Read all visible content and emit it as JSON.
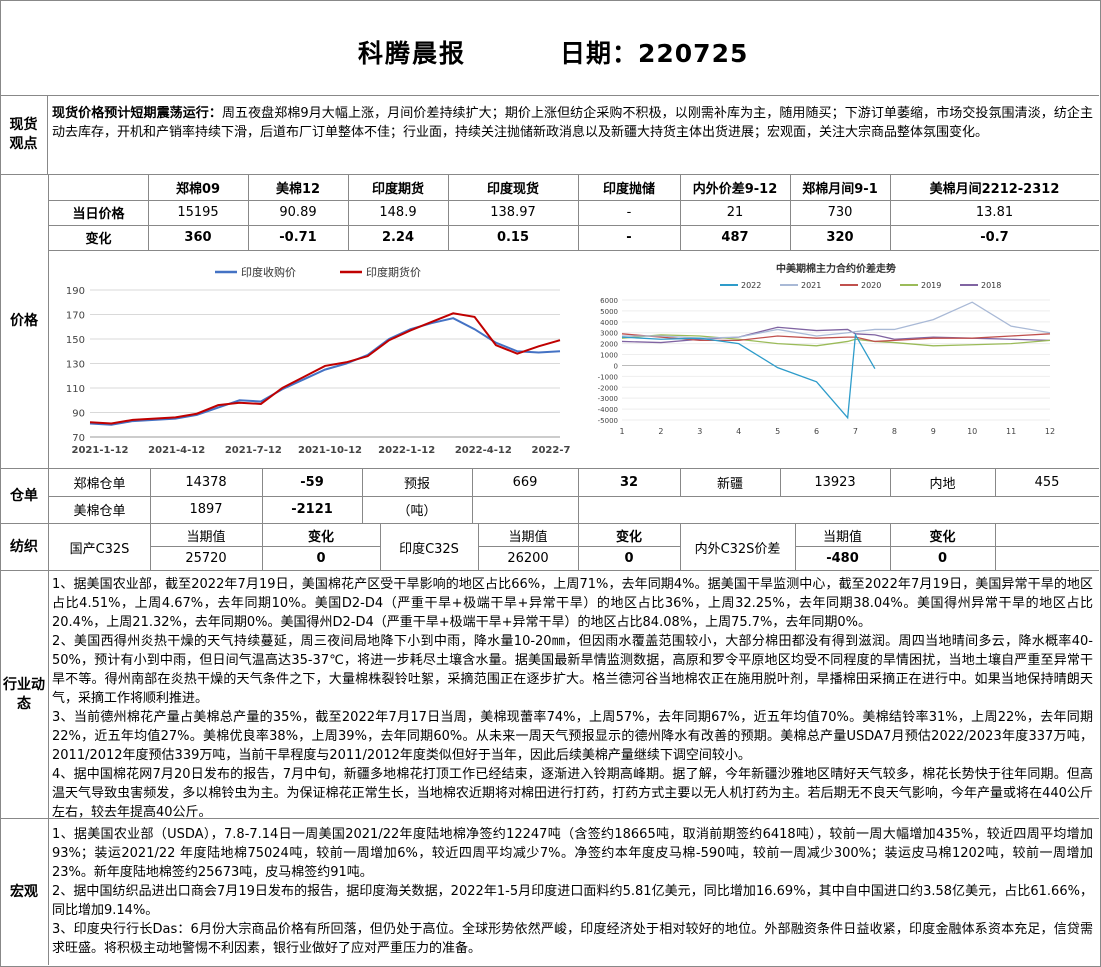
{
  "header": {
    "title": "科腾晨报",
    "date": "日期：220725"
  },
  "spot": {
    "label": "现货观点",
    "headline": "现货价格预计短期震荡运行：",
    "text": "周五夜盘郑棉9月大幅上涨，月间价差持续扩大；期价上涨但纺企采购不积极，以刚需补库为主，随用随买；下游订单萎缩，市场交投氛围清淡，纺企主动去库存，开机和产销率持续下滑，后道布厂订单整体不佳；行业面，持续关注抛储新政消息以及新疆大持货主体出货进展；宏观面，关注大宗商品整体氛围变化。"
  },
  "price": {
    "label": "价格",
    "headers": [
      "郑棉09",
      "美棉12",
      "印度期货",
      "印度现货",
      "印度抛储",
      "内外价差9-12",
      "郑棉月间9-1",
      "美棉月间2212-2312"
    ],
    "today_label": "当日价格",
    "today": [
      "15195",
      "90.89",
      "148.9",
      "138.97",
      "-",
      "21",
      "730",
      "13.81"
    ],
    "change_label": "变化",
    "change": [
      "360",
      "-0.71",
      "2.24",
      "0.15",
      "-",
      "487",
      "320",
      "-0.7"
    ]
  },
  "chart_data": [
    {
      "type": "line",
      "title": "",
      "legend_position": "top",
      "ylim": [
        70,
        190
      ],
      "yticks": [
        "190",
        "170",
        "150",
        "130",
        "110",
        "90",
        "70"
      ],
      "xticks": [
        "2021-1-12",
        "2021-4-12",
        "2021-7-12",
        "2021-10-12",
        "2022-1-12",
        "2022-4-12",
        "2022-7-12"
      ],
      "x": [
        "2021-1-12",
        "2021-2-12",
        "2021-3-12",
        "2021-4-12",
        "2021-5-12",
        "2021-6-12",
        "2021-7-12",
        "2021-8-12",
        "2021-9-12",
        "2021-10-12",
        "2021-11-12",
        "2021-12-12",
        "2022-1-12",
        "2022-2-12",
        "2022-3-12",
        "2022-4-12",
        "2022-5-12",
        "2022-6-01",
        "2022-6-12",
        "2022-6-22",
        "2022-7-01",
        "2022-7-12",
        "2022-7-22"
      ],
      "series": [
        {
          "name": "印度收购价",
          "color": "#4472C4",
          "values": [
            81,
            80,
            83,
            84,
            85,
            88,
            94,
            100,
            99,
            109,
            117,
            125,
            130,
            137,
            150,
            158,
            163,
            167,
            158,
            147,
            140,
            139,
            140
          ]
        },
        {
          "name": "印度期货价",
          "color": "#C00000",
          "values": [
            82,
            81,
            84,
            85,
            86,
            89,
            96,
            98,
            97,
            110,
            119,
            128,
            131,
            136,
            149,
            157,
            164,
            171,
            168,
            145,
            138,
            144,
            149
          ]
        }
      ]
    },
    {
      "type": "line",
      "title": "中美期棉主力合约价差走势",
      "legend_position": "top",
      "ylim": [
        -5000,
        6000
      ],
      "yticks": [
        "6000",
        "5000",
        "4000",
        "3000",
        "2000",
        "1000",
        "0",
        "-1000",
        "-2000",
        "-3000",
        "-4000",
        "-5000"
      ],
      "xticks": [
        "1",
        "2",
        "3",
        "4",
        "5",
        "6",
        "7",
        "8",
        "9",
        "10",
        "11",
        "12"
      ],
      "x": [
        1,
        2,
        3,
        4,
        5,
        6,
        6.8,
        7,
        7.5,
        8,
        9,
        10,
        11,
        12
      ],
      "series": [
        {
          "name": "2022",
          "color": "#2E9CCA",
          "values": [
            2600,
            2400,
            2500,
            2000,
            -200,
            -1500,
            -4800,
            2800,
            -300,
            null,
            null,
            null,
            null,
            null
          ]
        },
        {
          "name": "2021",
          "color": "#A9B9D6",
          "values": [
            2700,
            2700,
            2500,
            2600,
            3300,
            2700,
            3000,
            3100,
            3300,
            3300,
            4200,
            5800,
            3600,
            3000
          ]
        },
        {
          "name": "2020",
          "color": "#C0504D",
          "values": [
            2900,
            2600,
            2300,
            2300,
            2700,
            2500,
            2600,
            2600,
            2200,
            2300,
            2500,
            2500,
            2700,
            2900
          ]
        },
        {
          "name": "2019",
          "color": "#9BBB59",
          "values": [
            2500,
            2800,
            2700,
            2400,
            2000,
            1800,
            2200,
            2400,
            2200,
            2100,
            1800,
            1900,
            2000,
            2300
          ]
        },
        {
          "name": "2018",
          "color": "#8064A2",
          "values": [
            2200,
            2100,
            2400,
            2600,
            3500,
            3200,
            3300,
            2900,
            2800,
            2400,
            2600,
            2500,
            2400,
            2300
          ]
        }
      ]
    }
  ],
  "warehouse": {
    "label": "仓单",
    "zz_label": "郑棉仓单",
    "zz_value": "14378",
    "zz_change": "-59",
    "forecast_label": "预报",
    "forecast_value": "669",
    "forecast_change": "32",
    "xj_label": "新疆",
    "xj_value": "13923",
    "nd_label": "内地",
    "nd_value": "455",
    "us_label": "美棉仓单",
    "us_value": "1897",
    "us_change": "-2121",
    "us_unit": "（吨）"
  },
  "textile": {
    "label": "纺织",
    "dom_label": "国产C32S",
    "cur_label": "当期值",
    "chg_label": "变化",
    "dom_value": "25720",
    "dom_change": "0",
    "ind_label": "印度C32S",
    "ind_value": "26200",
    "ind_change": "0",
    "spread_label": "内外C32S价差",
    "spread_value": "-480",
    "spread_change": "0"
  },
  "industry": {
    "label": "行业动态",
    "paras": [
      "1、据美国农业部，截至2022年7月19日，美国棉花产区受干旱影响的地区占比66%，上周71%，去年同期4%。据美国干旱监测中心，截至2022年7月19日，美国异常干旱的地区占比4.51%，上周4.67%，去年同期10%。美国D2-D4（严重干旱+极端干旱+异常干旱）的地区占比36%，上周32.25%，去年同期38.04%。美国得州异常干旱的地区占比20.4%，上周21.32%，去年同期0%。美国得州D2-D4（严重干旱+极端干旱+异常干旱）的地区占比84.08%，上周75.7%，去年同期0%。",
      "2、美国西得州炎热干燥的天气持续蔓延，周三夜间局地降下小到中雨，降水量10-20㎜，但因雨水覆盖范围较小，大部分棉田都没有得到滋润。周四当地晴间多云，降水概率40-50%，预计有小到中雨，但日间气温高达35-37℃，将进一步耗尽土壤含水量。据美国最新旱情监测数据，高原和罗令平原地区均受不同程度的旱情困扰，当地土壤自严重至异常干旱不等。得州南部在炎热干燥的天气条件之下，大量棉株裂铃吐絮，采摘范围正在逐步扩大。格兰德河谷当地棉农正在施用脱叶剂，旱播棉田采摘正在进行中。如果当地保持晴朗天气，采摘工作将顺利推进。",
      "3、当前德州棉花产量占美棉总产量的35%，截至2022年7月17日当周，美棉现蕾率74%，上周57%，去年同期67%，近五年均值70%。美棉结铃率31%，上周22%，去年同期22%，近五年均值27%。美棉优良率38%，上周39%，去年同期60%。从未来一周天气预报显示的德州降水有改善的预期。美棉总产量USDA7月预估2022/2023年度337万吨，2011/2012年度预估339万吨，当前干旱程度与2011/2012年度类似但好于当年，因此后续美棉产量继续下调空间较小。",
      "4、据中国棉花网7月20日发布的报告，7月中旬，新疆多地棉花打顶工作已经结束，逐渐进入铃期高峰期。据了解，今年新疆沙雅地区晴好天气较多，棉花长势快于往年同期。但高温天气导致虫害频发，多以棉铃虫为主。为保证棉花正常生长，当地棉农近期将对棉田进行打药，打药方式主要以无人机打药为主。若后期无不良天气影响，今年产量或将在440公斤左右，较去年提高40公斤。"
    ]
  },
  "macro": {
    "label": "宏观",
    "paras": [
      "1、据美国农业部（USDA），7.8-7.14日一周美国2021/22年度陆地棉净签约12247吨（含签约18665吨，取消前期签约6418吨），较前一周大幅增加435%，较近四周平均增加93%；装运2021/22 年度陆地棉75024吨，较前一周增加6%，较近四周平均减少7%。净签约本年度皮马棉-590吨，较前一周减少300%；装运皮马棉1202吨，较前一周增加23%。新年度陆地棉签约25673吨，皮马棉签约91吨。",
      "2、据中国纺织品进出口商会7月19日发布的报告，据印度海关数据，2022年1-5月印度进口面料约5.81亿美元，同比增加16.69%，其中自中国进口约3.58亿美元，占比61.66%，同比增加9.14%。",
      "3、印度央行行长Das：6月份大宗商品价格有所回落，但仍处于高位。全球形势依然严峻，印度经济处于相对较好的地位。外部融资条件日益收紧，印度金融体系资本充足，信贷需求旺盛。将积极主动地警惕不利因素，银行业做好了应对严重压力的准备。"
    ]
  }
}
